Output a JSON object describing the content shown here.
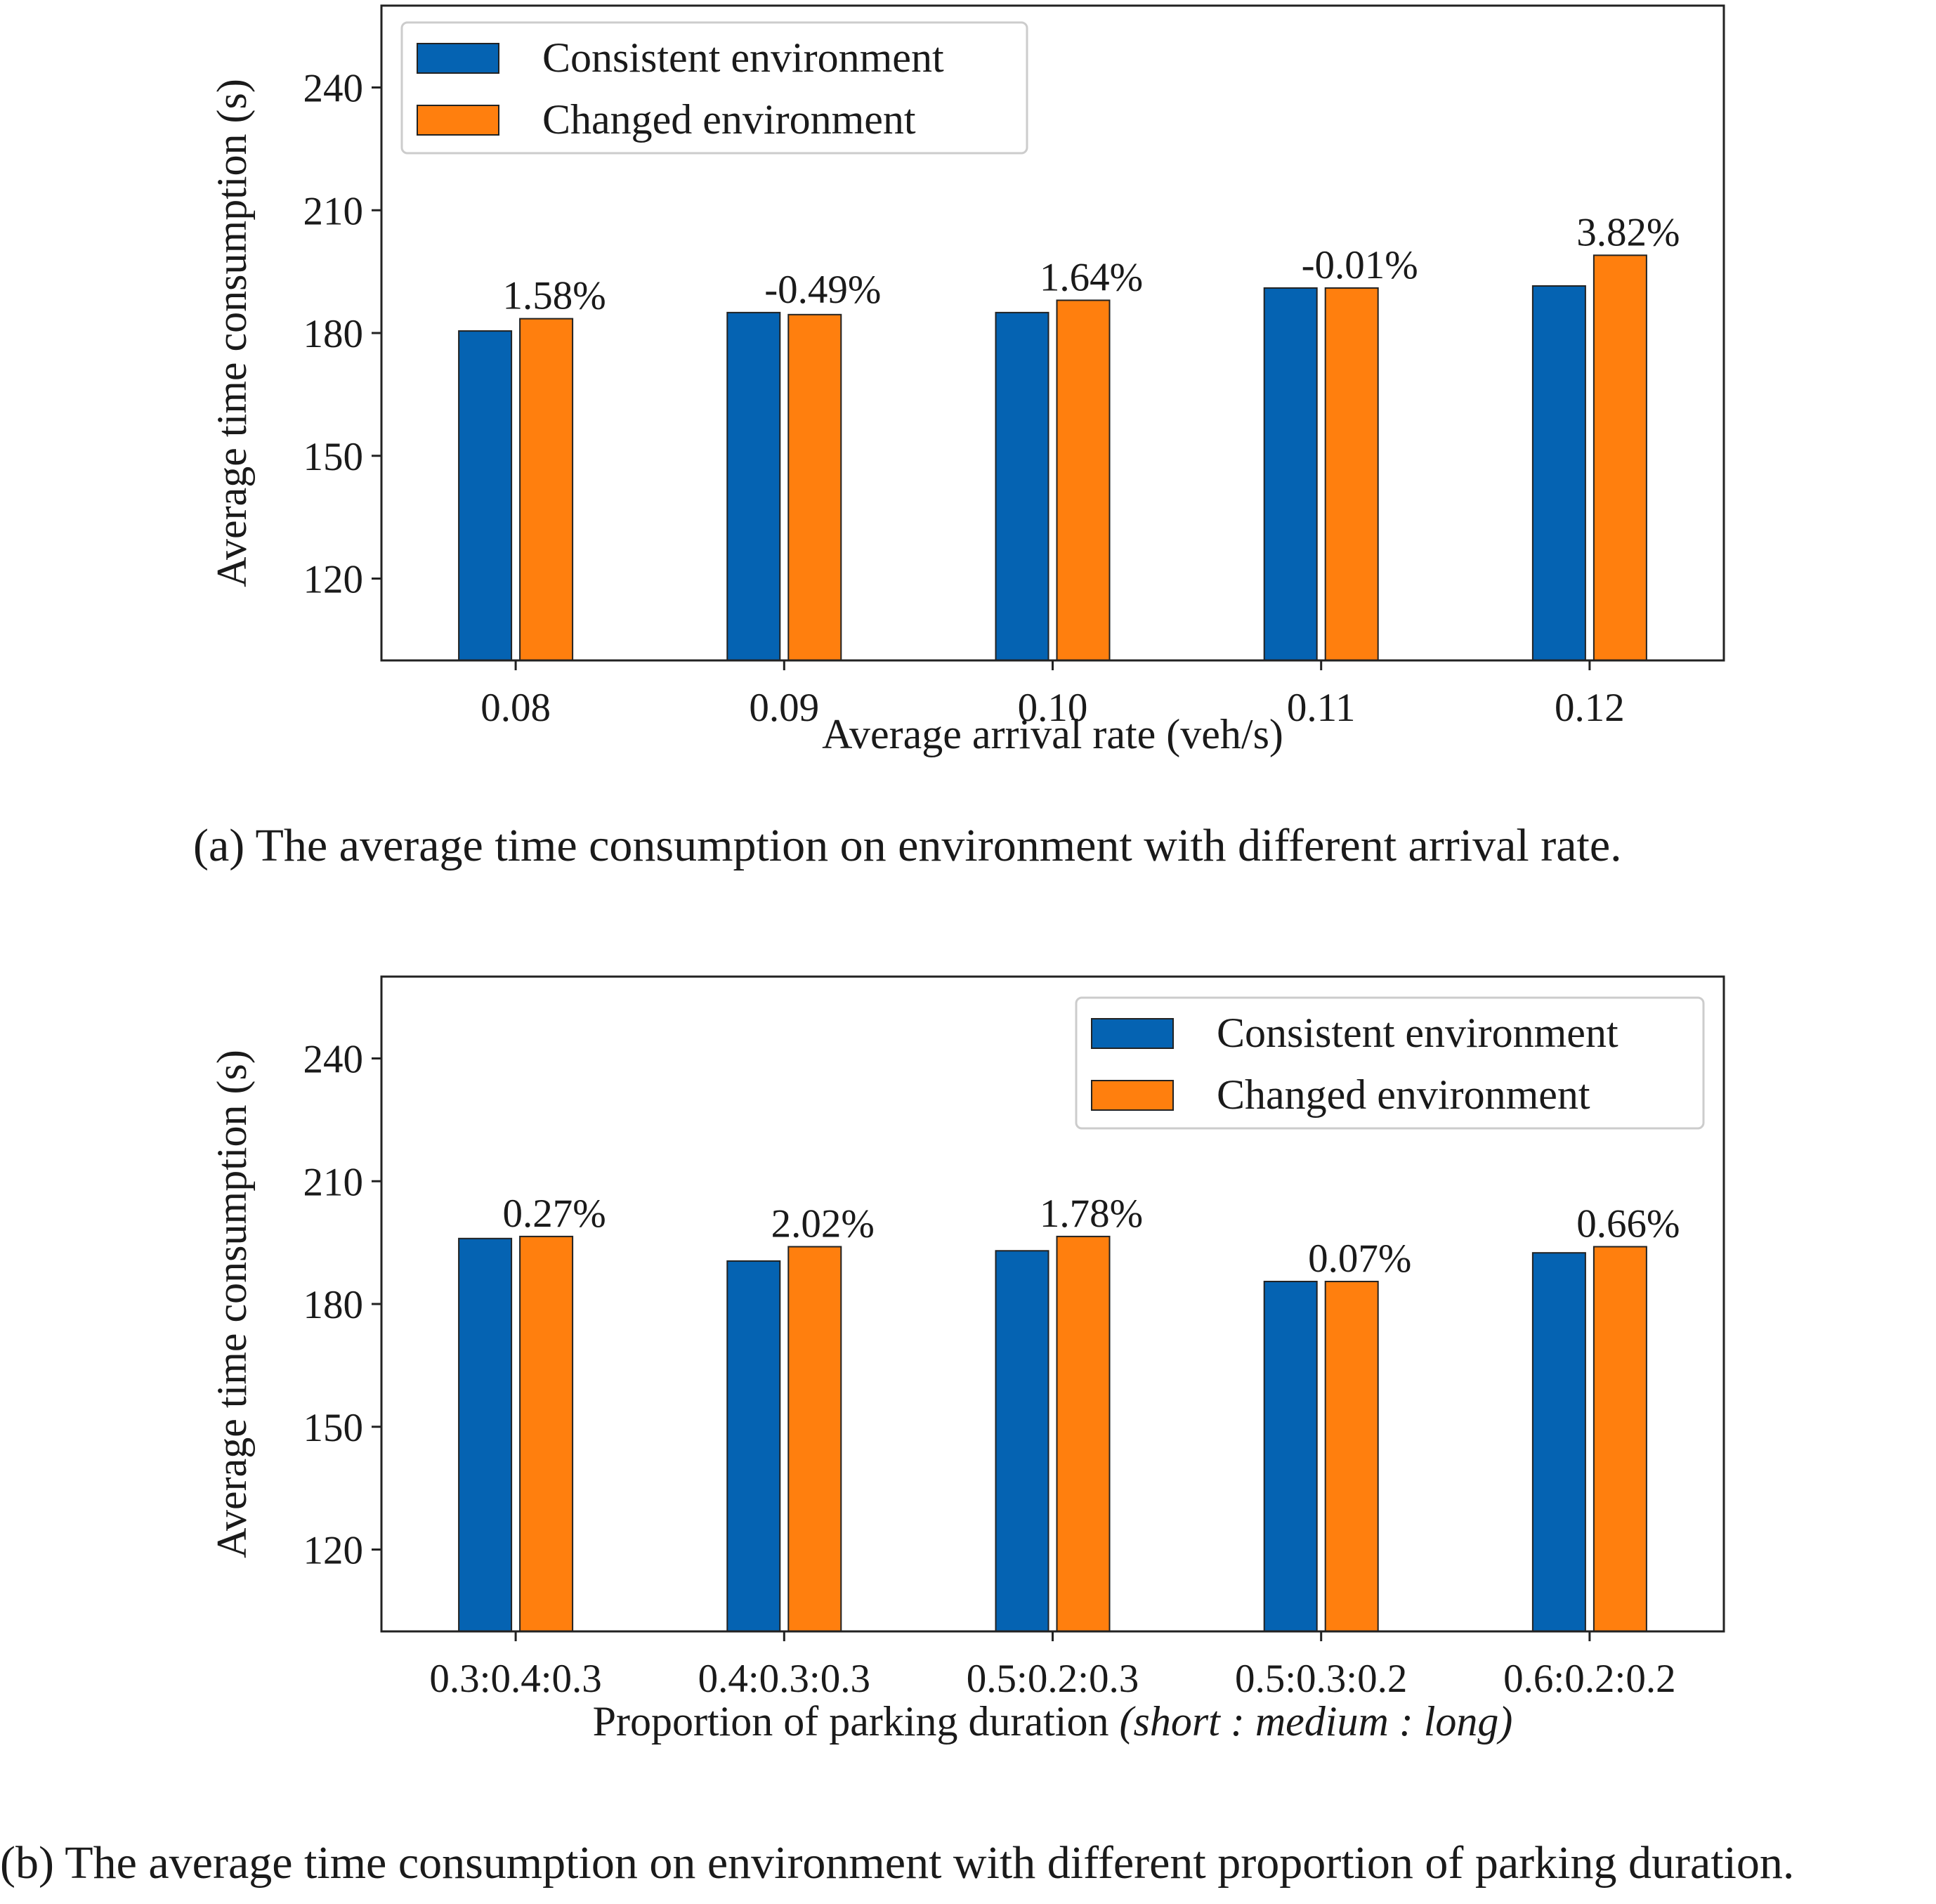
{
  "chart_data": [
    {
      "type": "bar",
      "title": "",
      "xlabel": "Average arrival rate (veh/s)",
      "xlabel_italic": "",
      "ylabel": "Average time consumption (s)",
      "categories": [
        "0.08",
        "0.09",
        "0.10",
        "0.11",
        "0.12"
      ],
      "yticks": [
        120,
        150,
        180,
        210,
        240
      ],
      "ylim": [
        100,
        260
      ],
      "grid": false,
      "legend_position": "top-left",
      "series": [
        {
          "name": "Consistent environment",
          "color": "#0563b2",
          "values": [
            180.5,
            185.0,
            185.0,
            191.0,
            191.5
          ]
        },
        {
          "name": "Changed environment",
          "color": "#ff7f0e",
          "values": [
            183.5,
            184.5,
            188.0,
            191.0,
            199.0
          ]
        }
      ],
      "annotations": [
        "1.58%",
        "-0.49%",
        "1.64%",
        "-0.01%",
        "3.82%"
      ],
      "caption": "(a)   The average time consumption on environment with different arrival rate."
    },
    {
      "type": "bar",
      "title": "",
      "xlabel": "Proportion of parking duration ",
      "xlabel_italic": "(short : medium : long)",
      "ylabel": "Average time consumption (s)",
      "categories": [
        "0.3:0.4:0.3",
        "0.4:0.3:0.3",
        "0.5:0.2:0.3",
        "0.5:0.3:0.2",
        "0.6:0.2:0.2"
      ],
      "yticks": [
        120,
        150,
        180,
        210,
        240
      ],
      "ylim": [
        100,
        260
      ],
      "grid": false,
      "legend_position": "top-right",
      "series": [
        {
          "name": "Consistent environment",
          "color": "#0563b2",
          "values": [
            196.0,
            190.5,
            193.0,
            185.5,
            192.5
          ]
        },
        {
          "name": "Changed environment",
          "color": "#ff7f0e",
          "values": [
            196.5,
            194.0,
            196.5,
            185.5,
            194.0
          ]
        }
      ],
      "annotations": [
        "0.27%",
        "2.02%",
        "1.78%",
        "0.07%",
        "0.66%"
      ],
      "caption": "(b)   The average time consumption on environment with different proportion of parking duration."
    }
  ]
}
